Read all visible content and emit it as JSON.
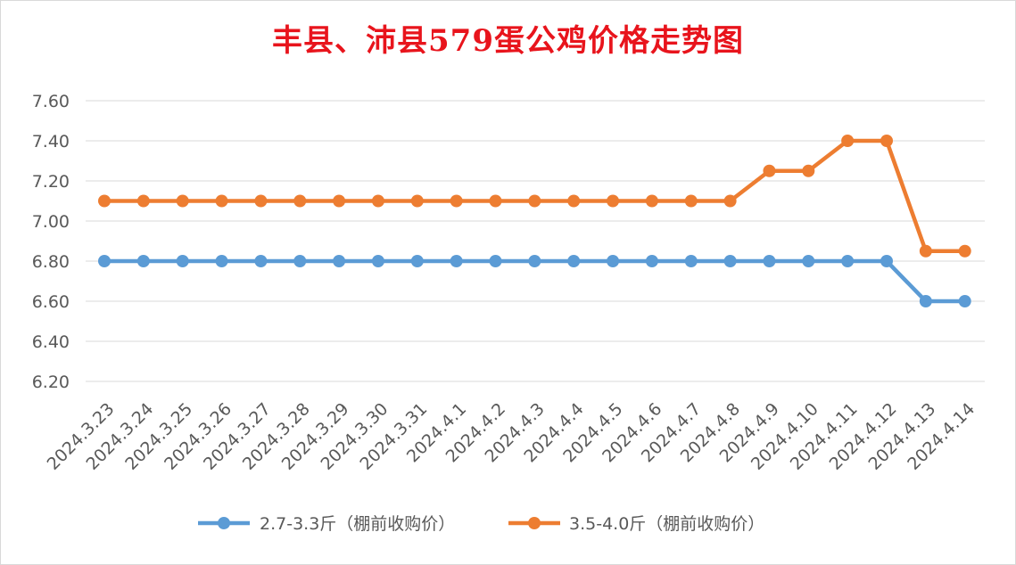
{
  "chart_data": {
    "type": "line",
    "title": "丰县、沛县579蛋公鸡价格走势图",
    "xlabel": "",
    "ylabel": "",
    "categories": [
      "2024.3.23",
      "2024.3.24",
      "2024.3.25",
      "2024.3.26",
      "2024.3.27",
      "2024.3.28",
      "2024.3.29",
      "2024.3.30",
      "2024.3.31",
      "2024.4.1",
      "2024.4.2",
      "2024.4.3",
      "2024.4.4",
      "2024.4.5",
      "2024.4.6",
      "2024.4.7",
      "2024.4.8",
      "2024.4.9",
      "2024.4.10",
      "2024.4.11",
      "2024.4.12",
      "2024.4.13",
      "2024.4.14"
    ],
    "ylim": [
      6.2,
      7.6
    ],
    "yticks": [
      "6.20",
      "6.40",
      "6.60",
      "6.80",
      "7.00",
      "7.20",
      "7.40",
      "7.60"
    ],
    "grid": true,
    "legend_position": "bottom",
    "series": [
      {
        "name": "2.7-3.3斤（棚前收购价）",
        "color": "#5b9bd5",
        "values": [
          6.8,
          6.8,
          6.8,
          6.8,
          6.8,
          6.8,
          6.8,
          6.8,
          6.8,
          6.8,
          6.8,
          6.8,
          6.8,
          6.8,
          6.8,
          6.8,
          6.8,
          6.8,
          6.8,
          6.8,
          6.8,
          6.6,
          6.6
        ]
      },
      {
        "name": "3.5-4.0斤（棚前收购价）",
        "color": "#ed7d31",
        "values": [
          7.1,
          7.1,
          7.1,
          7.1,
          7.1,
          7.1,
          7.1,
          7.1,
          7.1,
          7.1,
          7.1,
          7.1,
          7.1,
          7.1,
          7.1,
          7.1,
          7.1,
          7.25,
          7.25,
          7.4,
          7.4,
          6.85,
          6.85
        ]
      }
    ]
  }
}
